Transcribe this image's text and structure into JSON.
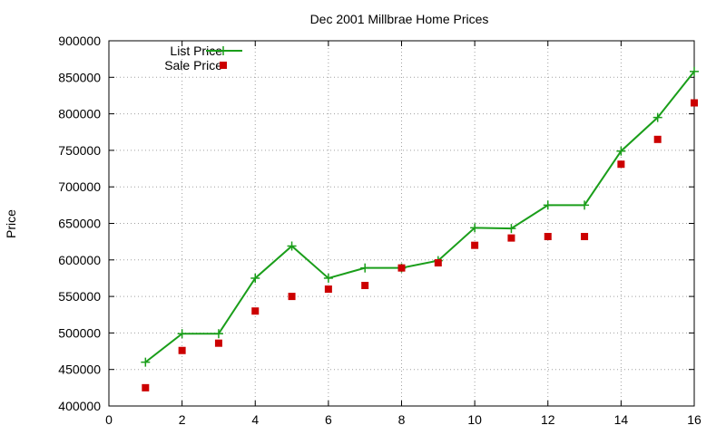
{
  "chart_data": {
    "type": "line",
    "title": "Dec 2001 Millbrae Home Prices",
    "xlabel": "",
    "ylabel": "Price",
    "xlim": [
      0,
      16
    ],
    "ylim": [
      400000,
      900000
    ],
    "x_ticks": [
      0,
      2,
      4,
      6,
      8,
      10,
      12,
      14,
      16
    ],
    "y_ticks": [
      400000,
      450000,
      500000,
      550000,
      600000,
      650000,
      700000,
      750000,
      800000,
      850000,
      900000
    ],
    "grid": true,
    "legend_position": "top-left",
    "series": [
      {
        "name": "List Price",
        "style": "line-with-plus-markers",
        "color": "#1a9e1a",
        "points": [
          [
            1,
            460000
          ],
          [
            2,
            499000
          ],
          [
            3,
            499000
          ],
          [
            4,
            575000
          ],
          [
            5,
            619000
          ],
          [
            6,
            575000
          ],
          [
            7,
            589000
          ],
          [
            8,
            589000
          ],
          [
            9,
            599000
          ],
          [
            10,
            644000
          ],
          [
            11,
            643000
          ],
          [
            12,
            675000
          ],
          [
            13,
            675000
          ],
          [
            14,
            749000
          ],
          [
            15,
            795000
          ],
          [
            16,
            858000
          ]
        ]
      },
      {
        "name": "Sale Price",
        "style": "square-markers",
        "color": "#cc0000",
        "points": [
          [
            1,
            425000
          ],
          [
            2,
            476000
          ],
          [
            3,
            486000
          ],
          [
            4,
            530000
          ],
          [
            5,
            550000
          ],
          [
            6,
            560000
          ],
          [
            7,
            565000
          ],
          [
            8,
            589000
          ],
          [
            9,
            596000
          ],
          [
            10,
            620000
          ],
          [
            11,
            630000
          ],
          [
            12,
            632000
          ],
          [
            13,
            632000
          ],
          [
            14,
            731000
          ],
          [
            15,
            765000
          ],
          [
            16,
            815000
          ]
        ]
      }
    ]
  }
}
